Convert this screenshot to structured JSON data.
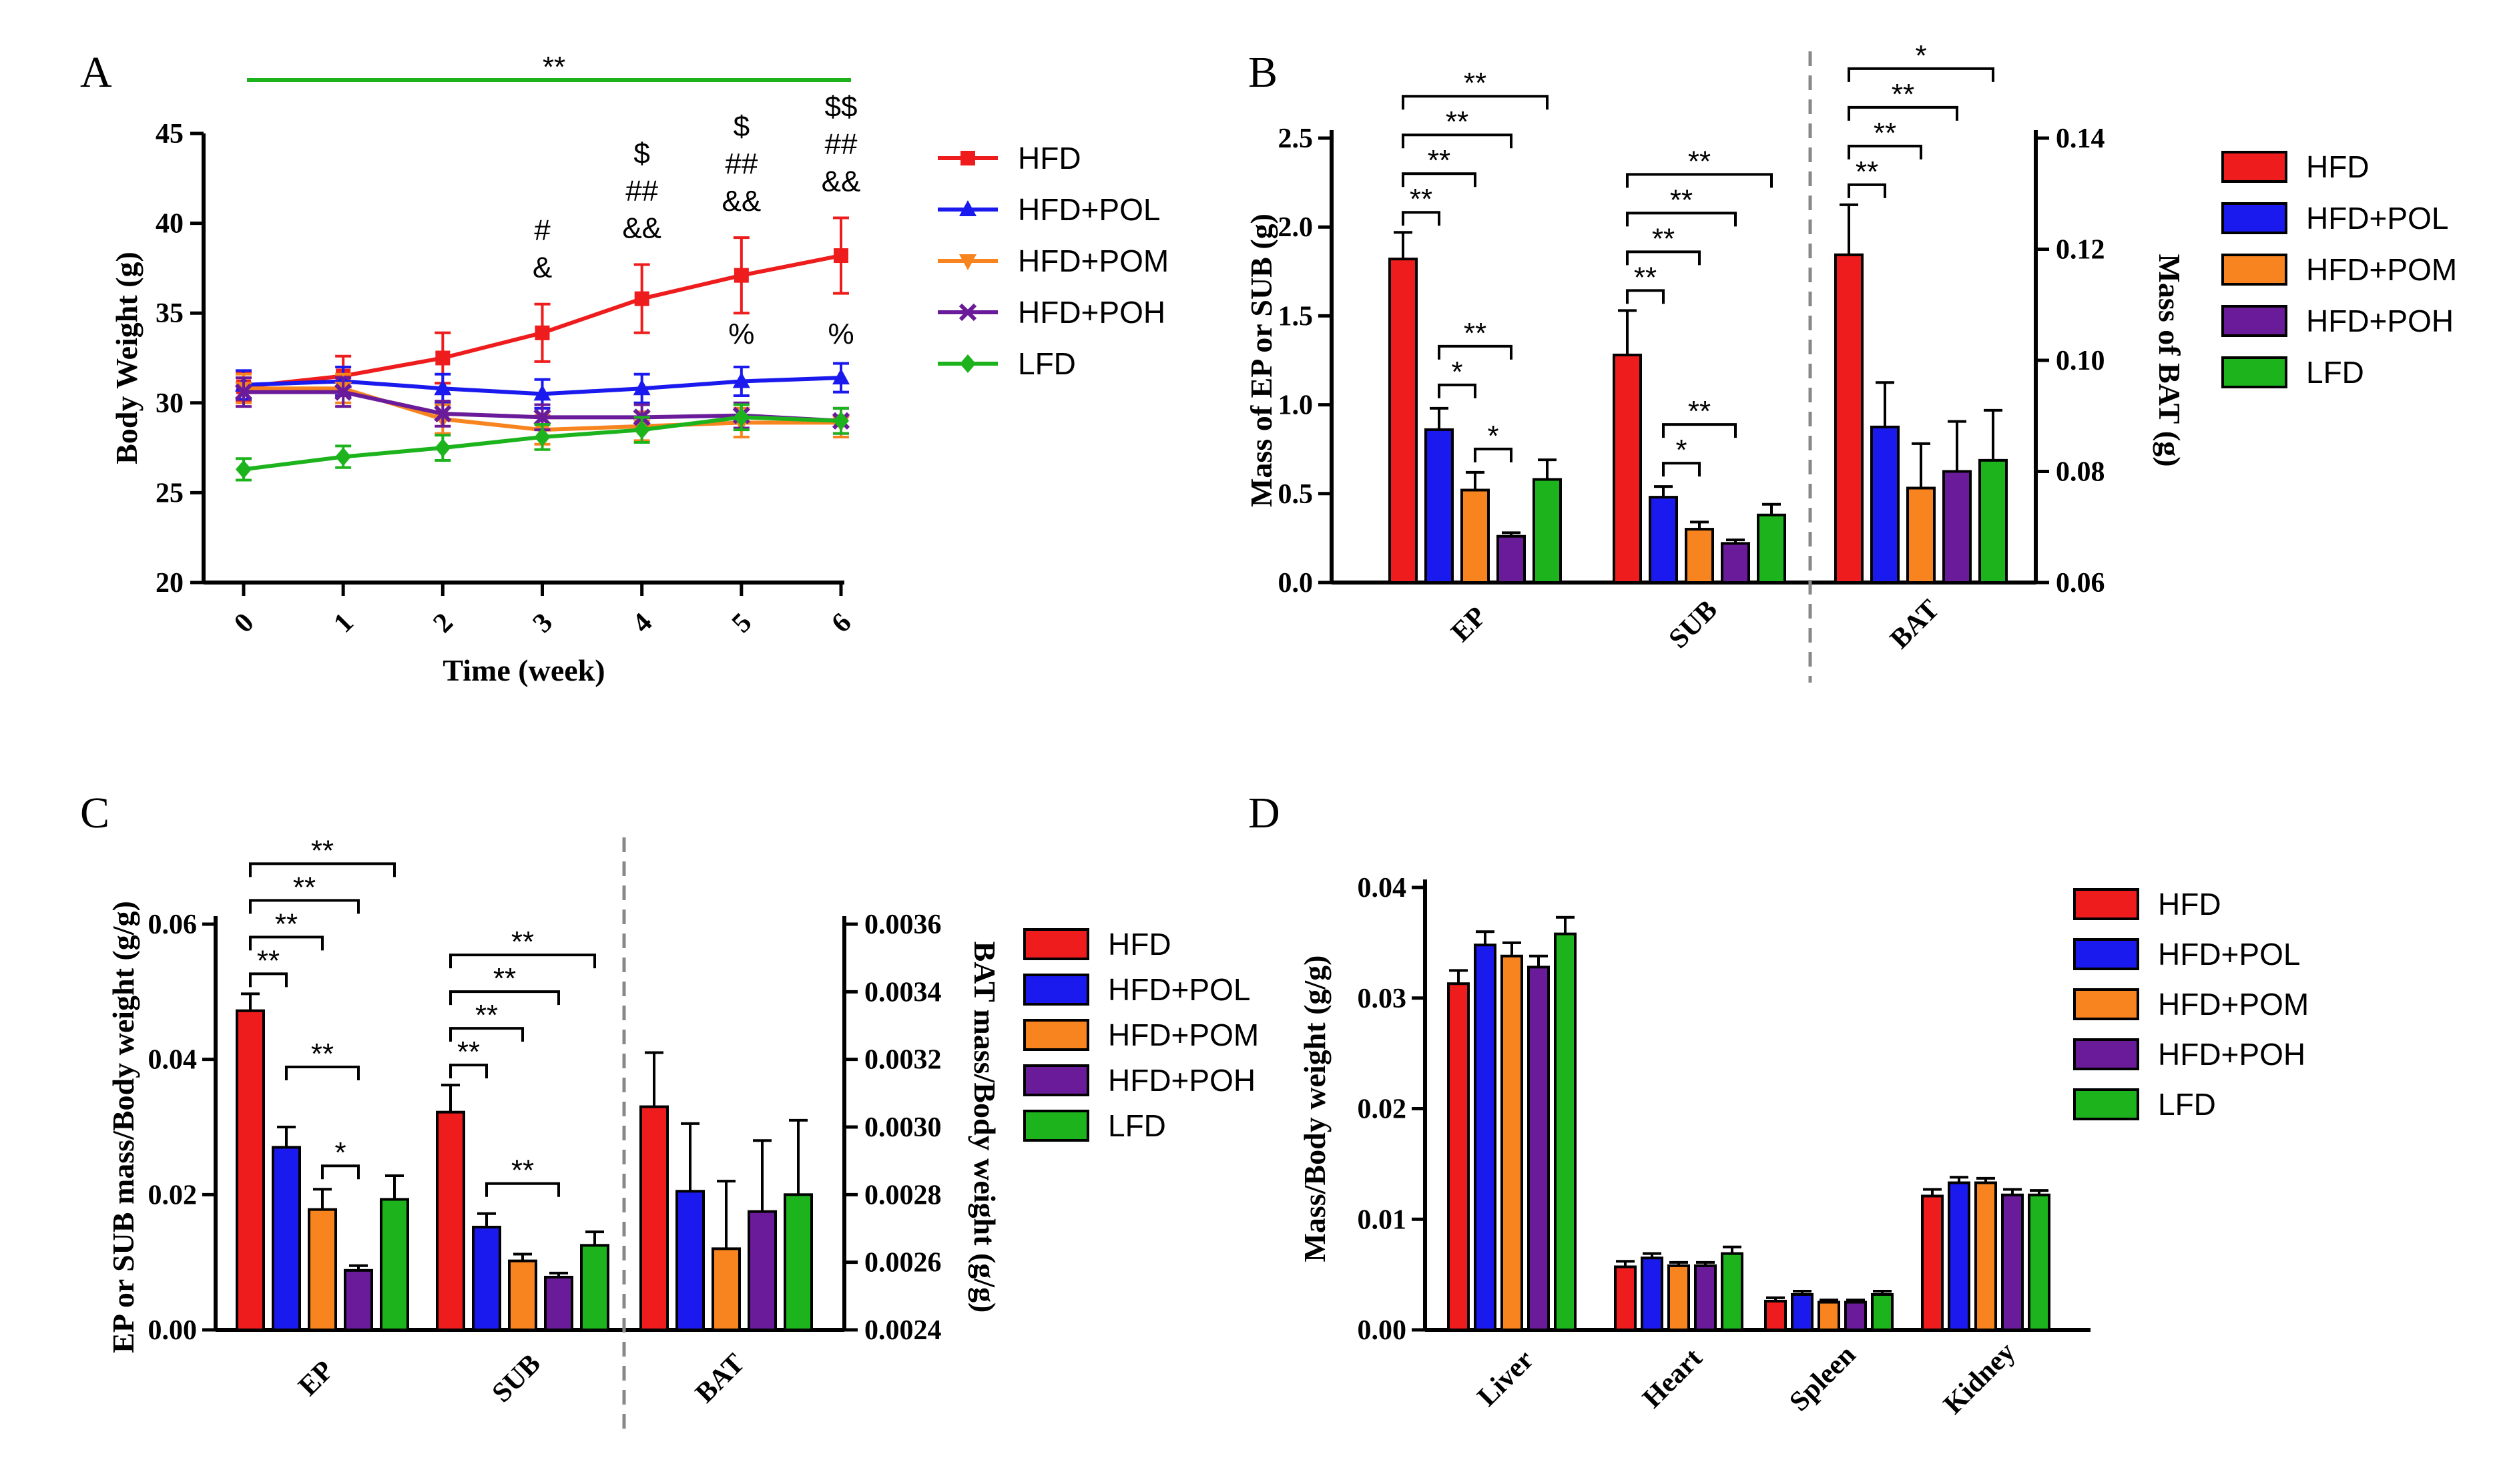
{
  "colors": {
    "HFD": "#ee1c1c",
    "HFD+POL": "#1a1aee",
    "HFD+POM": "#f7841e",
    "HFD+POH": "#6a1b9a",
    "LFD": "#1db31d"
  },
  "groups": [
    "HFD",
    "HFD+POL",
    "HFD+POM",
    "HFD+POH",
    "LFD"
  ],
  "chart_data": [
    {
      "panel": "A",
      "type": "line",
      "xlabel": "Time (week)",
      "ylabel": "Body Weight (g)",
      "x": [
        0,
        1,
        2,
        3,
        4,
        5,
        6
      ],
      "ylim": [
        20,
        45
      ],
      "yticks": [
        "20",
        "25",
        "30",
        "35",
        "40",
        "45"
      ],
      "xticks": [
        "0",
        "1",
        "2",
        "3",
        "4",
        "5",
        "6"
      ],
      "top_bar_label": "**",
      "series": [
        {
          "name": "HFD",
          "values": [
            30.9,
            31.5,
            32.5,
            33.9,
            35.8,
            37.1,
            38.2
          ],
          "err": [
            0.8,
            1.1,
            1.4,
            1.6,
            1.9,
            2.1,
            2.1
          ]
        },
        {
          "name": "HFD+POL",
          "values": [
            31.0,
            31.2,
            30.8,
            30.5,
            30.8,
            31.2,
            31.4
          ],
          "err": [
            0.8,
            0.8,
            0.8,
            0.8,
            0.8,
            0.8,
            0.8
          ]
        },
        {
          "name": "HFD+POM",
          "values": [
            30.8,
            30.8,
            29.1,
            28.5,
            28.7,
            28.9,
            28.9
          ],
          "err": [
            0.8,
            0.8,
            0.8,
            0.8,
            0.8,
            0.8,
            0.8
          ]
        },
        {
          "name": "HFD+POH",
          "values": [
            30.6,
            30.6,
            29.4,
            29.2,
            29.2,
            29.3,
            29.0
          ],
          "err": [
            0.8,
            0.8,
            0.7,
            0.7,
            0.7,
            0.7,
            0.7
          ]
        },
        {
          "name": "LFD",
          "values": [
            26.3,
            27.0,
            27.5,
            28.1,
            28.5,
            29.2,
            29.0
          ],
          "err": [
            0.6,
            0.6,
            0.7,
            0.7,
            0.7,
            0.7,
            0.7
          ]
        }
      ],
      "annotations": [
        {
          "x": 3,
          "lines": [
            {
              "text": "#",
              "group": "HFD+POM"
            },
            {
              "text": "&",
              "group": "HFD+POH"
            }
          ]
        },
        {
          "x": 4,
          "lines": [
            {
              "text": "$",
              "group": "HFD+POL"
            },
            {
              "text": "##",
              "group": "HFD+POM"
            },
            {
              "text": "&&",
              "group": "HFD+POH"
            }
          ]
        },
        {
          "x": 5,
          "lines": [
            {
              "text": "$",
              "group": "HFD+POL"
            },
            {
              "text": "##",
              "group": "HFD+POM"
            },
            {
              "text": "&&",
              "group": "HFD+POH"
            }
          ]
        },
        {
          "x": 6,
          "lines": [
            {
              "text": "$$",
              "group": "HFD+POL"
            },
            {
              "text": "##",
              "group": "HFD+POM"
            },
            {
              "text": "&&",
              "group": "HFD+POH"
            }
          ]
        },
        {
          "x": 5,
          "lines": [
            {
              "text": "%",
              "group": "grey"
            }
          ],
          "low": true
        },
        {
          "x": 6,
          "lines": [
            {
              "text": "%",
              "group": "grey"
            }
          ],
          "low": true
        }
      ]
    },
    {
      "panel": "B",
      "type": "bar",
      "ylabel": "Mass of EP or SUB (g)",
      "y2label": "Mass of BAT (g)",
      "ylim": [
        0,
        2.5
      ],
      "y2lim": [
        0.06,
        0.14
      ],
      "yticks": [
        "0.0",
        "0.5",
        "1.0",
        "1.5",
        "2.0",
        "2.5"
      ],
      "y2ticks": [
        "0.06",
        "0.08",
        "0.10",
        "0.12",
        "0.14"
      ],
      "categories": [
        "EP",
        "SUB",
        "BAT"
      ],
      "EP": {
        "values": [
          1.82,
          0.86,
          0.52,
          0.26,
          0.58
        ],
        "err": [
          0.15,
          0.12,
          0.1,
          0.02,
          0.11
        ]
      },
      "SUB": {
        "values": [
          1.28,
          0.48,
          0.3,
          0.22,
          0.38
        ],
        "err": [
          0.25,
          0.06,
          0.04,
          0.02,
          0.06
        ]
      },
      "BAT": {
        "values": [
          0.119,
          0.088,
          0.077,
          0.08,
          0.082
        ],
        "err": [
          0.009,
          0.008,
          0.008,
          0.009,
          0.009
        ]
      },
      "brackets": {
        "EP": [
          {
            "from": 0,
            "to": 1,
            "label": "**"
          },
          {
            "from": 0,
            "to": 2,
            "label": "**"
          },
          {
            "from": 0,
            "to": 3,
            "label": "**"
          },
          {
            "from": 0,
            "to": 4,
            "label": "**"
          },
          {
            "from": 1,
            "to": 2,
            "label": "*"
          },
          {
            "from": 1,
            "to": 3,
            "label": "**"
          },
          {
            "from": 2,
            "to": 3,
            "label": "*"
          }
        ],
        "SUB": [
          {
            "from": 0,
            "to": 1,
            "label": "**"
          },
          {
            "from": 0,
            "to": 2,
            "label": "**"
          },
          {
            "from": 0,
            "to": 3,
            "label": "**"
          },
          {
            "from": 0,
            "to": 4,
            "label": "**"
          },
          {
            "from": 1,
            "to": 2,
            "label": "*"
          },
          {
            "from": 1,
            "to": 3,
            "label": "**"
          }
        ],
        "BAT": [
          {
            "from": 0,
            "to": 1,
            "label": "**"
          },
          {
            "from": 0,
            "to": 2,
            "label": "**"
          },
          {
            "from": 0,
            "to": 3,
            "label": "**"
          },
          {
            "from": 0,
            "to": 4,
            "label": "*"
          }
        ]
      }
    },
    {
      "panel": "C",
      "type": "bar",
      "ylabel": "EP or SUB mass/Body weight (g/g)",
      "y2label": "BAT mass/Body weight (g/g)",
      "ylim": [
        0,
        0.06
      ],
      "y2lim": [
        0.0024,
        0.0036
      ],
      "yticks": [
        "0.00",
        "0.02",
        "0.04",
        "0.06"
      ],
      "y2ticks": [
        "0.0024",
        "0.0026",
        "0.0028",
        "0.0030",
        "0.0032",
        "0.0034",
        "0.0036"
      ],
      "categories": [
        "EP",
        "SUB",
        "BAT"
      ],
      "EP": {
        "values": [
          0.0472,
          0.027,
          0.0178,
          0.0088,
          0.0193
        ],
        "err": [
          0.0025,
          0.003,
          0.003,
          0.0007,
          0.0035
        ]
      },
      "SUB": {
        "values": [
          0.0322,
          0.0152,
          0.0102,
          0.0078,
          0.0125
        ],
        "err": [
          0.004,
          0.002,
          0.001,
          0.0006,
          0.002
        ]
      },
      "BAT": {
        "values": [
          0.00306,
          0.00281,
          0.00264,
          0.00275,
          0.0028
        ],
        "err": [
          0.00016,
          0.0002,
          0.0002,
          0.00021,
          0.00022
        ]
      },
      "brackets": {
        "EP": [
          {
            "from": 0,
            "to": 1,
            "label": "**"
          },
          {
            "from": 0,
            "to": 2,
            "label": "**"
          },
          {
            "from": 0,
            "to": 3,
            "label": "**"
          },
          {
            "from": 0,
            "to": 4,
            "label": "**"
          },
          {
            "from": 1,
            "to": 3,
            "label": "**"
          },
          {
            "from": 2,
            "to": 3,
            "label": "*"
          }
        ],
        "SUB": [
          {
            "from": 0,
            "to": 1,
            "label": "**"
          },
          {
            "from": 0,
            "to": 2,
            "label": "**"
          },
          {
            "from": 0,
            "to": 3,
            "label": "**"
          },
          {
            "from": 0,
            "to": 4,
            "label": "**"
          },
          {
            "from": 1,
            "to": 3,
            "label": "**"
          }
        ],
        "BAT": []
      }
    },
    {
      "panel": "D",
      "type": "bar",
      "ylabel": "Mass/Body weight (g/g)",
      "ylim": [
        0,
        0.04
      ],
      "yticks": [
        "0.00",
        "0.01",
        "0.02",
        "0.03",
        "0.04"
      ],
      "categories": [
        "Liver",
        "Heart",
        "Spleen",
        "Kidney"
      ],
      "Liver": {
        "values": [
          0.0313,
          0.0348,
          0.0338,
          0.0328,
          0.0358
        ],
        "err": [
          0.0012,
          0.0012,
          0.0012,
          0.001,
          0.0015
        ]
      },
      "Heart": {
        "values": [
          0.0057,
          0.0065,
          0.0058,
          0.0058,
          0.0069
        ],
        "err": [
          0.0005,
          0.0004,
          0.0003,
          0.0003,
          0.0006
        ]
      },
      "Spleen": {
        "values": [
          0.0026,
          0.0032,
          0.0025,
          0.0025,
          0.0032
        ],
        "err": [
          0.0003,
          0.0003,
          0.0002,
          0.0002,
          0.0003
        ]
      },
      "Kidney": {
        "values": [
          0.0121,
          0.0133,
          0.0133,
          0.0122,
          0.0122
        ],
        "err": [
          0.0006,
          0.0005,
          0.0004,
          0.0005,
          0.0004
        ]
      }
    }
  ]
}
